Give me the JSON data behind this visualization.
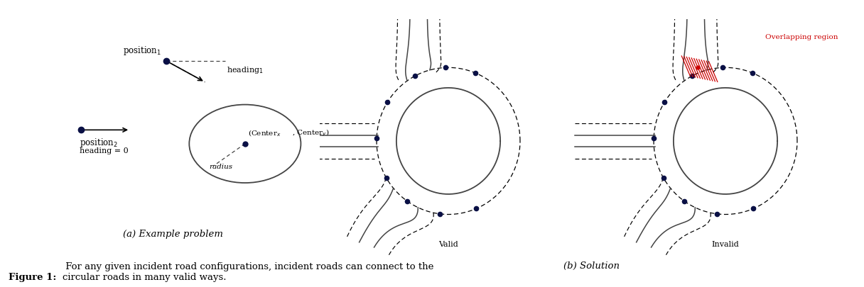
{
  "bg_color": "#ffffff",
  "dot_color": "#0a1045",
  "red_color": "#cc0000",
  "line_color": "#444444",
  "dash_color": "#222222",
  "title_a": "(a) Example problem",
  "title_b": "(b) Solution",
  "caption_bold": "Figure 1:",
  "caption_rest": "  For any given incident road configurations, incident roads can connect to the\ncircular roads in many valid ways.",
  "valid_label": "Valid",
  "invalid_label": "Invalid",
  "overlap_label": "Overlapping region",
  "pos1_label": "position",
  "pos2_label": "position",
  "heading1_label": "heading",
  "heading2_label": "heading = 0",
  "center_label": "(Center",
  "center_label2": ", Center",
  "radius_label": "radius"
}
